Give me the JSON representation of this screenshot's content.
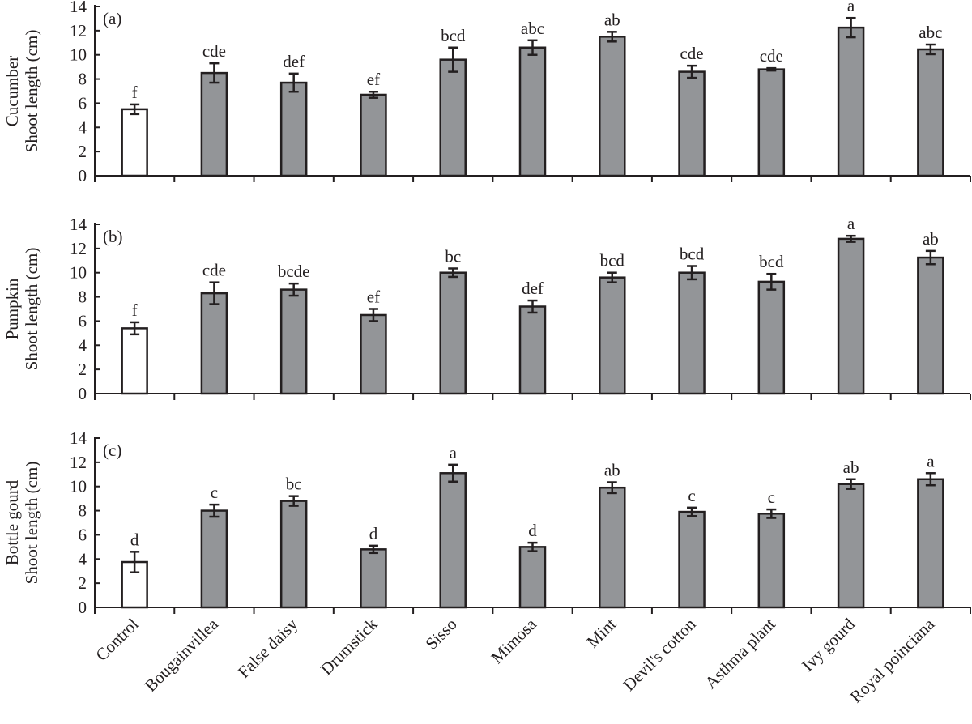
{
  "chart_data": [
    {
      "type": "bar",
      "panel_label": "(a)",
      "ylabel": [
        "Cucumber",
        "Shoot length (cm)"
      ],
      "ylim": [
        0,
        14
      ],
      "yticks": [
        0,
        2,
        4,
        6,
        8,
        10,
        12,
        14
      ],
      "categories": [
        "Control",
        "Bougainvillea",
        "False daisy",
        "Drumstick",
        "Sisso",
        "Mimosa",
        "Mint",
        "Devil's cotton",
        "Asthma plant",
        "Ivy gourd",
        "Royal poinciana"
      ],
      "values": [
        5.5,
        8.5,
        7.7,
        6.7,
        9.6,
        10.6,
        11.5,
        8.6,
        8.8,
        12.25,
        10.45
      ],
      "errors": [
        0.4,
        0.8,
        0.75,
        0.25,
        1.0,
        0.6,
        0.4,
        0.5,
        0.1,
        0.8,
        0.4
      ],
      "letters": [
        "f",
        "cde",
        "def",
        "ef",
        "bcd",
        "abc",
        "ab",
        "cde",
        "cde",
        "a",
        "abc"
      ]
    },
    {
      "type": "bar",
      "panel_label": "(b)",
      "ylabel": [
        "Pumpkin",
        "Shoot length (cm)"
      ],
      "ylim": [
        0,
        14
      ],
      "yticks": [
        0,
        2,
        4,
        6,
        8,
        10,
        12,
        14
      ],
      "categories": [
        "Control",
        "Bougainvillea",
        "False daisy",
        "Drumstick",
        "Sisso",
        "Mimosa",
        "Mint",
        "Devil's cotton",
        "Asthma plant",
        "Ivy gourd",
        "Royal poinciana"
      ],
      "values": [
        5.4,
        8.3,
        8.6,
        6.5,
        10.0,
        7.2,
        9.6,
        10.0,
        9.25,
        12.8,
        11.25
      ],
      "errors": [
        0.5,
        0.9,
        0.5,
        0.5,
        0.35,
        0.5,
        0.4,
        0.55,
        0.65,
        0.25,
        0.55
      ],
      "letters": [
        "f",
        "cde",
        "bcde",
        "ef",
        "bc",
        "def",
        "bcd",
        "bcd",
        "bcd",
        "a",
        "ab"
      ]
    },
    {
      "type": "bar",
      "panel_label": "(c)",
      "ylabel": [
        "Bottle gourd",
        "Shoot length (cm)"
      ],
      "ylim": [
        0,
        14
      ],
      "yticks": [
        0,
        2,
        4,
        6,
        8,
        10,
        12,
        14
      ],
      "categories": [
        "Control",
        "Bougainvillea",
        "False daisy",
        "Drumstick",
        "Sisso",
        "Mimosa",
        "Mint",
        "Devil's cotton",
        "Asthma plant",
        "Ivy gourd",
        "Royal poinciana"
      ],
      "values": [
        3.75,
        8.0,
        8.8,
        4.8,
        11.1,
        5.0,
        9.9,
        7.9,
        7.75,
        10.2,
        10.6
      ],
      "errors": [
        0.85,
        0.5,
        0.4,
        0.3,
        0.7,
        0.35,
        0.45,
        0.35,
        0.35,
        0.4,
        0.5
      ],
      "letters": [
        "d",
        "c",
        "bc",
        "d",
        "a",
        "d",
        "ab",
        "c",
        "c",
        "ab",
        "a"
      ]
    }
  ],
  "colors": {
    "control_fill": "#ffffff",
    "treatment_fill": "#939598",
    "stroke": "#231f20"
  }
}
